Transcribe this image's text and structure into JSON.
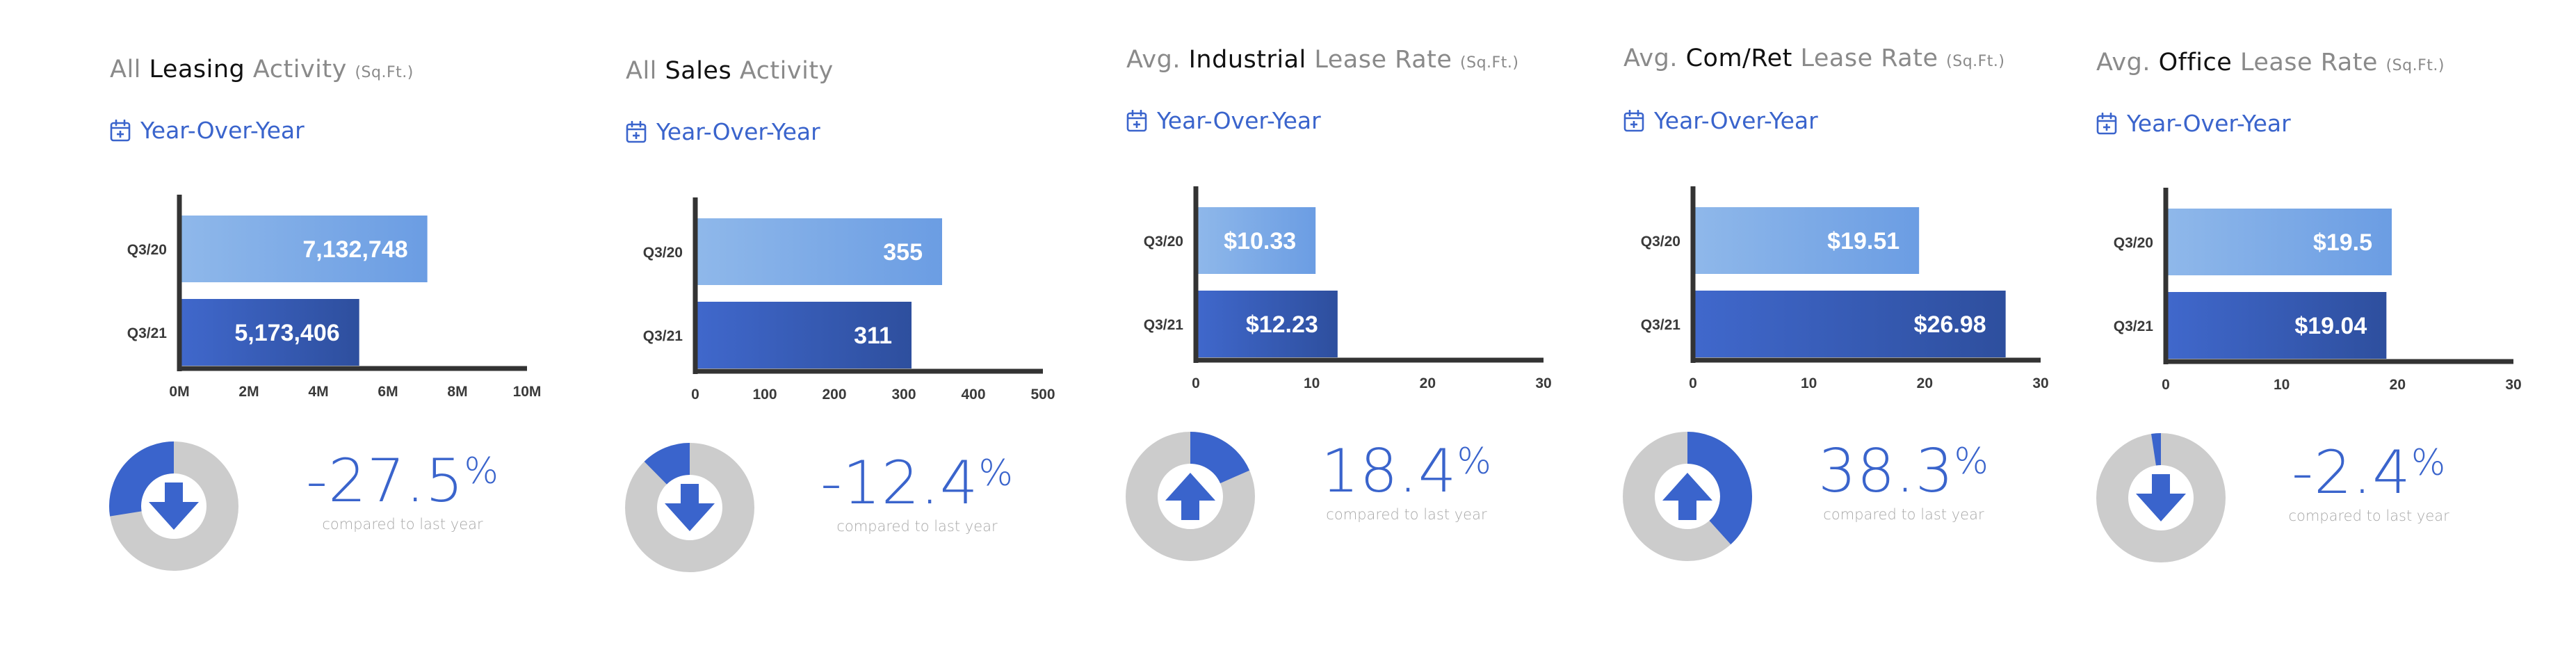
{
  "panels": [
    {
      "title_pre": "All",
      "title_bold": "Leasing",
      "title_post": "Activity",
      "title_unit": "(Sq.Ft.)",
      "period": "Year-Over-Year",
      "change_value": "-27.5",
      "change_unit": "%",
      "change_caption": "compared to last year",
      "change_direction": "down",
      "chart_data": {
        "type": "bar",
        "orientation": "horizontal",
        "categories": [
          "Q3/20",
          "Q3/21"
        ],
        "values": [
          7132748,
          5173406
        ],
        "value_labels": [
          "7,132,748",
          "5,173,406"
        ],
        "xlim": [
          0,
          10000000
        ],
        "x_ticks": [
          0,
          2000000,
          4000000,
          6000000,
          8000000,
          10000000
        ],
        "x_tick_labels": [
          "0M",
          "2M",
          "4M",
          "6M",
          "8M",
          "10M"
        ]
      }
    },
    {
      "title_pre": "All",
      "title_bold": "Sales",
      "title_post": "Activity",
      "title_unit": "",
      "period": "Year-Over-Year",
      "change_value": "-12.4",
      "change_unit": "%",
      "change_caption": "compared to last year",
      "change_direction": "down",
      "chart_data": {
        "type": "bar",
        "orientation": "horizontal",
        "categories": [
          "Q3/20",
          "Q3/21"
        ],
        "values": [
          355,
          311
        ],
        "value_labels": [
          "355",
          "311"
        ],
        "xlim": [
          0,
          500
        ],
        "x_ticks": [
          0,
          100,
          200,
          300,
          400,
          500
        ],
        "x_tick_labels": [
          "0",
          "100",
          "200",
          "300",
          "400",
          "500"
        ]
      }
    },
    {
      "title_pre": "Avg.",
      "title_bold": "Industrial",
      "title_post": "Lease Rate",
      "title_unit": "(Sq.Ft.)",
      "period": "Year-Over-Year",
      "change_value": "18.4",
      "change_unit": "%",
      "change_caption": "compared to last year",
      "change_direction": "up",
      "chart_data": {
        "type": "bar",
        "orientation": "horizontal",
        "categories": [
          "Q3/20",
          "Q3/21"
        ],
        "values": [
          10.33,
          12.23
        ],
        "value_labels": [
          "$10.33",
          "$12.23"
        ],
        "xlim": [
          0,
          30
        ],
        "x_ticks": [
          0,
          10,
          20,
          30
        ],
        "x_tick_labels": [
          "0",
          "10",
          "20",
          "30"
        ]
      }
    },
    {
      "title_pre": "Avg.",
      "title_bold": "Com/Ret",
      "title_post": "Lease Rate",
      "title_unit": "(Sq.Ft.)",
      "period": "Year-Over-Year",
      "change_value": "38.3",
      "change_unit": "%",
      "change_caption": "compared to last year",
      "change_direction": "up",
      "chart_data": {
        "type": "bar",
        "orientation": "horizontal",
        "categories": [
          "Q3/20",
          "Q3/21"
        ],
        "values": [
          19.51,
          26.98
        ],
        "value_labels": [
          "$19.51",
          "$26.98"
        ],
        "xlim": [
          0,
          30
        ],
        "x_ticks": [
          0,
          10,
          20,
          30
        ],
        "x_tick_labels": [
          "0",
          "10",
          "20",
          "30"
        ]
      }
    },
    {
      "title_pre": "Avg.",
      "title_bold": "Office",
      "title_post": "Lease Rate",
      "title_unit": "(Sq.Ft.)",
      "period": "Year-Over-Year",
      "change_value": "-2.4",
      "change_unit": "%",
      "change_caption": "compared to last year",
      "change_direction": "down",
      "chart_data": {
        "type": "bar",
        "orientation": "horizontal",
        "categories": [
          "Q3/20",
          "Q3/21"
        ],
        "values": [
          19.5,
          19.04
        ],
        "value_labels": [
          "$19.5",
          "$19.04"
        ],
        "xlim": [
          0,
          30
        ],
        "x_ticks": [
          0,
          10,
          20,
          30
        ],
        "x_tick_labels": [
          "0",
          "10",
          "20",
          "30"
        ]
      }
    }
  ],
  "colors": {
    "accent": "#3a64cc",
    "bar_light_start": "#8fb8ea",
    "bar_light_end": "#6b9de3",
    "bar_dark_start": "#4068cc",
    "bar_dark_end": "#2e4f9e",
    "axis": "#333333",
    "donut_track": "#cccccc",
    "donut_fill": "#3a64cc",
    "title_gray": "#8a8a8a",
    "caption_gray": "#a8a8a8"
  },
  "icons": {
    "period": "calendar-plus-icon",
    "change_up": "arrow-up-icon",
    "change_down": "arrow-down-icon"
  }
}
